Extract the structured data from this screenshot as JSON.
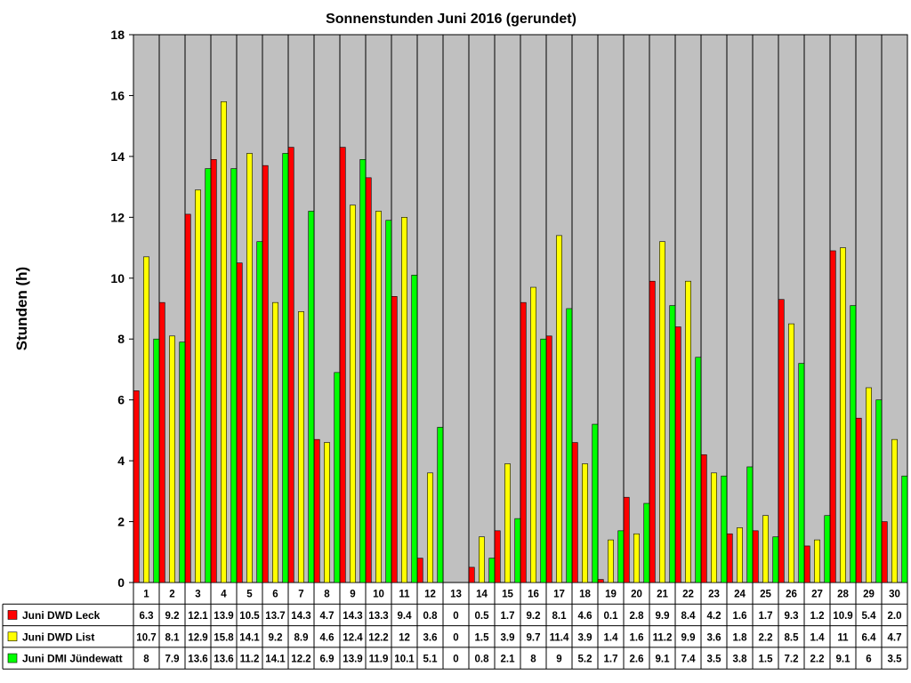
{
  "chart_data": {
    "type": "bar",
    "title": "Sonnenstunden Juni 2016 (gerundet)",
    "xlabel": "",
    "ylabel": "Stunden (h)",
    "ylim": [
      0,
      18
    ],
    "ytick_step": 2,
    "grid": "vertical",
    "legend": "data-table-left",
    "categories": [
      "1",
      "2",
      "3",
      "4",
      "5",
      "6",
      "7",
      "8",
      "9",
      "10",
      "11",
      "12",
      "13",
      "14",
      "15",
      "16",
      "17",
      "18",
      "19",
      "20",
      "21",
      "22",
      "23",
      "24",
      "25",
      "26",
      "27",
      "28",
      "29",
      "30"
    ],
    "series": [
      {
        "name": "Juni DWD Leck",
        "color": "#ff0000",
        "values": [
          6.3,
          9.2,
          12.1,
          13.9,
          10.5,
          13.7,
          14.3,
          4.7,
          14.3,
          13.3,
          9.4,
          0.8,
          0,
          0.5,
          1.7,
          9.2,
          8.1,
          4.6,
          0.1,
          2.8,
          9.9,
          8.4,
          4.2,
          1.6,
          1.7,
          9.3,
          1.2,
          10.9,
          5.4,
          2.0
        ],
        "labels": [
          "6.3",
          "9.2",
          "12.1",
          "13.9",
          "10.5",
          "13.7",
          "14.3",
          "4.7",
          "14.3",
          "13.3",
          "9.4",
          "0.8",
          "0",
          "0.5",
          "1.7",
          "9.2",
          "8.1",
          "4.6",
          "0.1",
          "2.8",
          "9.9",
          "8.4",
          "4.2",
          "1.6",
          "1.7",
          "9.3",
          "1.2",
          "10.9",
          "5.4",
          "2.0"
        ]
      },
      {
        "name": "Juni DWD List",
        "color": "#ffff00",
        "values": [
          10.7,
          8.1,
          12.9,
          15.8,
          14.1,
          9.2,
          8.9,
          4.6,
          12.4,
          12.2,
          12,
          3.6,
          0,
          1.5,
          3.9,
          9.7,
          11.4,
          3.9,
          1.4,
          1.6,
          11.2,
          9.9,
          3.6,
          1.8,
          2.2,
          8.5,
          1.4,
          11,
          6.4,
          4.7
        ],
        "labels": [
          "10.7",
          "8.1",
          "12.9",
          "15.8",
          "14.1",
          "9.2",
          "8.9",
          "4.6",
          "12.4",
          "12.2",
          "12",
          "3.6",
          "0",
          "1.5",
          "3.9",
          "9.7",
          "11.4",
          "3.9",
          "1.4",
          "1.6",
          "11.2",
          "9.9",
          "3.6",
          "1.8",
          "2.2",
          "8.5",
          "1.4",
          "11",
          "6.4",
          "4.7"
        ]
      },
      {
        "name": "Juni DMI Jündewatt",
        "color": "#00ff00",
        "values": [
          8,
          7.9,
          13.6,
          13.6,
          11.2,
          14.1,
          12.2,
          6.9,
          13.9,
          11.9,
          10.1,
          5.1,
          0,
          0.8,
          2.1,
          8,
          9,
          5.2,
          1.7,
          2.6,
          9.1,
          7.4,
          3.5,
          3.8,
          1.5,
          7.2,
          2.2,
          9.1,
          6,
          3.5
        ],
        "labels": [
          "8",
          "7.9",
          "13.6",
          "13.6",
          "11.2",
          "14.1",
          "12.2",
          "6.9",
          "13.9",
          "11.9",
          "10.1",
          "5.1",
          "0",
          "0.8",
          "2.1",
          "8",
          "9",
          "5.2",
          "1.7",
          "2.6",
          "9.1",
          "7.4",
          "3.5",
          "3.8",
          "1.5",
          "7.2",
          "2.2",
          "9.1",
          "6",
          "3.5"
        ]
      }
    ]
  }
}
